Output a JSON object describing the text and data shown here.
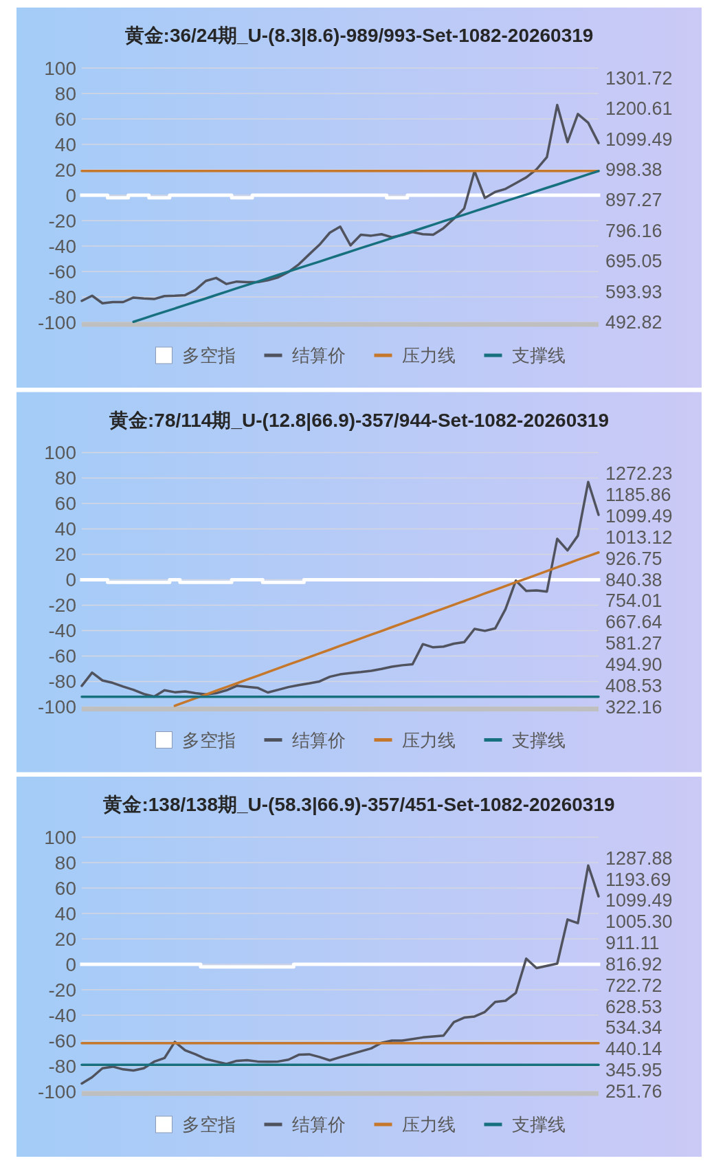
{
  "chart_data": [
    {
      "type": "line",
      "title": "黄金:36/24期_U-(8.3|8.6)-989/993-Set-1082-20260319",
      "categories": [
        null,
        null,
        null,
        null,
        null,
        null,
        null,
        null,
        null,
        null,
        null,
        null,
        null,
        null,
        null,
        null,
        null,
        null,
        null,
        null,
        null,
        null,
        null,
        null,
        null,
        null,
        null,
        null,
        null,
        null,
        null,
        null,
        null,
        null,
        null,
        null,
        null,
        null,
        null,
        null,
        null,
        null,
        null,
        null,
        null,
        null,
        null,
        null,
        null,
        null,
        null
      ],
      "ylim": [
        -100,
        100
      ],
      "yticks": [
        -100,
        -80,
        -60,
        -40,
        -20,
        0,
        20,
        40,
        60,
        80,
        100
      ],
      "y2lim": [
        492.82,
        1335.4
      ],
      "y2ticks": [
        492.82,
        593.93,
        695.05,
        796.16,
        897.27,
        998.38,
        1099.49,
        1200.61,
        1301.72
      ],
      "tick_labels": "y",
      "grid": "y",
      "legend": "bottom",
      "series": [
        {
          "name": "多空指",
          "type": "step",
          "color": "#ffffff",
          "values": [
            0,
            0,
            0,
            -2,
            -2,
            0,
            0,
            -2,
            -2,
            0,
            0,
            0,
            0,
            0,
            0,
            -2,
            -2,
            0,
            0,
            0,
            0,
            0,
            0,
            0,
            0,
            0,
            0,
            0,
            0,
            0,
            -2,
            -2,
            0,
            0,
            0,
            0,
            0,
            0,
            0,
            0,
            0,
            0,
            0,
            0,
            0,
            0,
            0,
            0,
            0,
            0,
            0
          ]
        },
        {
          "name": "结算价",
          "axis": "y2",
          "color": "#50535e",
          "values": [
            564,
            581,
            556,
            560,
            560,
            575,
            572,
            570,
            580,
            581,
            583,
            600,
            630,
            640,
            620,
            628,
            626,
            626,
            632,
            642,
            660,
            685,
            718,
            750,
            790,
            810,
            748,
            783,
            780,
            785,
            775,
            782,
            792,
            785,
            783,
            805,
            836,
            870,
            994,
            905,
            925,
            935,
            954,
            973,
            1000,
            1040,
            1213,
            1090,
            1183,
            1154,
            1087
          ]
        },
        {
          "name": "压力线",
          "color": "#c5782c",
          "values": [
            19,
            19,
            19,
            19,
            19,
            19,
            19,
            19,
            19,
            19,
            19,
            19,
            19,
            19,
            19,
            19,
            19,
            19,
            19,
            19,
            19,
            19,
            19,
            19,
            19,
            19,
            19,
            19,
            19,
            19,
            19,
            19,
            19,
            19,
            19,
            19,
            19,
            19,
            19,
            19,
            19,
            19,
            19,
            19,
            19,
            19,
            19,
            19,
            19,
            19,
            19
          ]
        },
        {
          "name": "支撑线",
          "color": "#17707e",
          "values": [
            null,
            null,
            null,
            null,
            null,
            -99.6,
            -97.0,
            -94.3,
            -91.7,
            -89.1,
            -86.4,
            -83.8,
            -81.2,
            -78.5,
            -75.9,
            -73.2,
            -70.6,
            -68.0,
            -65.3,
            -62.7,
            -60.1,
            -57.4,
            -54.8,
            -52.2,
            -49.5,
            -46.9,
            -44.3,
            -41.6,
            -39.0,
            -36.4,
            -33.7,
            -31.1,
            -28.4,
            -25.8,
            -23.2,
            -20.5,
            -17.9,
            -15.3,
            -12.6,
            -10.0,
            -7.4,
            -4.7,
            -2.1,
            0.5,
            3.2,
            5.8,
            8.4,
            11.1,
            13.7,
            16.4,
            19.0
          ]
        }
      ]
    },
    {
      "type": "line",
      "title": "黄金:78/114期_U-(12.8|66.9)-357/944-Set-1082-20260319",
      "categories": [
        null,
        null,
        null,
        null,
        null,
        null,
        null,
        null,
        null,
        null,
        null,
        null,
        null,
        null,
        null,
        null,
        null,
        null,
        null,
        null,
        null,
        null,
        null,
        null,
        null,
        null,
        null,
        null,
        null,
        null,
        null,
        null,
        null,
        null,
        null,
        null,
        null,
        null,
        null,
        null,
        null,
        null,
        null,
        null,
        null,
        null,
        null,
        null,
        null,
        null,
        null
      ],
      "ylim": [
        -100,
        100
      ],
      "yticks": [
        -100,
        -80,
        -60,
        -40,
        -20,
        0,
        20,
        40,
        60,
        80,
        100
      ],
      "y2lim": [
        322.16,
        1358.6
      ],
      "y2ticks": [
        322.16,
        408.53,
        {
          "value": 494.9,
          "label": "494.90"
        },
        581.27,
        667.64,
        754.01,
        840.38,
        926.75,
        1013.12,
        1099.49,
        1185.86,
        1272.23
      ],
      "tick_labels": "y",
      "grid": "y",
      "legend": "bottom",
      "series": [
        {
          "name": "多空指",
          "type": "step",
          "color": "#ffffff",
          "values": [
            0,
            0,
            0,
            -2,
            -2,
            -2,
            -2,
            -2,
            -2,
            0,
            -2,
            -2,
            -2,
            -2,
            -2,
            0,
            0,
            0,
            -2,
            -2,
            -2,
            -2,
            0,
            0,
            0,
            0,
            0,
            0,
            0,
            0,
            0,
            0,
            0,
            0,
            0,
            0,
            0,
            0,
            0,
            0,
            0,
            0,
            0,
            0,
            0,
            0,
            0,
            0,
            0,
            0,
            0
          ]
        },
        {
          "name": "结算价",
          "axis": "y2",
          "color": "#50535e",
          "values": [
            408,
            462,
            430,
            420,
            405,
            392,
            375,
            364,
            390,
            382,
            385,
            378,
            373,
            378,
            390,
            408,
            404,
            400,
            381,
            392,
            403,
            411,
            418,
            426,
            445,
            455,
            460,
            464,
            469,
            477,
            486,
            492,
            496,
            578,
            565,
            568,
            580,
            586,
            640,
            632,
            642,
            721,
            837,
            795,
            797,
            792,
            1007,
            960,
            1020,
            1239,
            1105
          ]
        },
        {
          "name": "压力线",
          "color": "#c5782c",
          "values": [
            null,
            null,
            null,
            null,
            null,
            null,
            null,
            null,
            null,
            -99.1,
            -96.2,
            -93.2,
            -90.3,
            -87.3,
            -84.4,
            -81.5,
            -78.5,
            -75.6,
            -72.6,
            -69.7,
            -66.7,
            -63.8,
            -60.9,
            -57.9,
            -55.0,
            -52.0,
            -49.1,
            -46.1,
            -43.2,
            -40.3,
            -37.3,
            -34.4,
            -31.4,
            -28.5,
            -25.5,
            -22.6,
            -19.7,
            -16.7,
            -13.8,
            -10.8,
            -7.9,
            -4.9,
            -2.0,
            0.9,
            3.9,
            6.8,
            9.8,
            12.7,
            15.7,
            18.6,
            21.5
          ]
        },
        {
          "name": "支撑线",
          "color": "#17707e",
          "values": [
            -92,
            -92,
            -92,
            -92,
            -92,
            -92,
            -92,
            -92,
            -92,
            -92,
            -92,
            -92,
            -92,
            -92,
            -92,
            -92,
            -92,
            -92,
            -92,
            -92,
            -92,
            -92,
            -92,
            -92,
            -92,
            -92,
            -92,
            -92,
            -92,
            -92,
            -92,
            -92,
            -92,
            -92,
            -92,
            -92,
            -92,
            -92,
            -92,
            -92,
            -92,
            -92,
            -92,
            -92,
            -92,
            -92,
            -92,
            -92,
            -92,
            -92,
            -92
          ]
        }
      ]
    },
    {
      "type": "line",
      "title": "黄金:138/138期_U-(58.3|66.9)-357/451-Set-1082-20260319",
      "categories": [
        null,
        null,
        null,
        null,
        null,
        null,
        null,
        null,
        null,
        null,
        null,
        null,
        null,
        null,
        null,
        null,
        null,
        null,
        null,
        null,
        null,
        null,
        null,
        null,
        null,
        null,
        null,
        null,
        null,
        null,
        null,
        null,
        null,
        null,
        null,
        null,
        null,
        null,
        null,
        null,
        null,
        null,
        null,
        null,
        null,
        null,
        null,
        null,
        null,
        null,
        null
      ],
      "ylim": [
        -100,
        100
      ],
      "yticks": [
        -100,
        -80,
        -60,
        -40,
        -20,
        0,
        20,
        40,
        60,
        80,
        100
      ],
      "y2lim": [
        251.76,
        1382.04
      ],
      "y2ticks": [
        251.76,
        345.95,
        440.14,
        534.34,
        628.53,
        722.72,
        816.92,
        911.11,
        {
          "value": 1005.3,
          "label": "1005.30"
        },
        1099.49,
        1193.69,
        1287.88
      ],
      "tick_labels": "y",
      "grid": "y",
      "legend": "bottom",
      "series": [
        {
          "name": "多空指",
          "type": "step",
          "color": "#ffffff",
          "values": [
            0,
            0,
            0,
            0,
            0,
            0,
            0,
            0,
            0,
            0,
            0,
            0,
            -2,
            -2,
            -2,
            -2,
            -2,
            -2,
            -2,
            -2,
            -2,
            0,
            0,
            0,
            0,
            0,
            0,
            0,
            0,
            0,
            0,
            0,
            0,
            0,
            0,
            0,
            0,
            0,
            0,
            0,
            0,
            0,
            0,
            0,
            0,
            0,
            0,
            0,
            0,
            0,
            0
          ]
        },
        {
          "name": "结算价",
          "axis": "y2",
          "color": "#50535e",
          "values": [
            287,
            315,
            355,
            362,
            350,
            345,
            355,
            384,
            400,
            472,
            435,
            417,
            396,
            385,
            374,
            388,
            391,
            385,
            384,
            385,
            393,
            415,
            417,
            405,
            390,
            404,
            417,
            430,
            443,
            468,
            478,
            478,
            485,
            492,
            496,
            500,
            560,
            580,
            585,
            605,
            650,
            655,
            690,
            842,
            800,
            810,
            820,
            1016,
            1000,
            1256,
            1119
          ]
        },
        {
          "name": "压力线",
          "color": "#c5782c",
          "values": [
            -62,
            -62,
            -62,
            -62,
            -62,
            -62,
            -62,
            -62,
            -62,
            -62,
            -62,
            -62,
            -62,
            -62,
            -62,
            -62,
            -62,
            -62,
            -62,
            -62,
            -62,
            -62,
            -62,
            -62,
            -62,
            -62,
            -62,
            -62,
            -62,
            -62,
            -62,
            -62,
            -62,
            -62,
            -62,
            -62,
            -62,
            -62,
            -62,
            -62,
            -62,
            -62,
            -62,
            -62,
            -62,
            -62,
            -62,
            -62,
            -62,
            -62,
            -62
          ]
        },
        {
          "name": "支撑线",
          "color": "#17707e",
          "values": [
            -79,
            -79,
            -79,
            -79,
            -79,
            -79,
            -79,
            -79,
            -79,
            -79,
            -79,
            -79,
            -79,
            -79,
            -79,
            -79,
            -79,
            -79,
            -79,
            -79,
            -79,
            -79,
            -79,
            -79,
            -79,
            -79,
            -79,
            -79,
            -79,
            -79,
            -79,
            -79,
            -79,
            -79,
            -79,
            -79,
            -79,
            -79,
            -79,
            -79,
            -79,
            -79,
            -79,
            -79,
            -79,
            -79,
            -79,
            -79,
            -79,
            -79,
            -79
          ]
        }
      ]
    }
  ]
}
